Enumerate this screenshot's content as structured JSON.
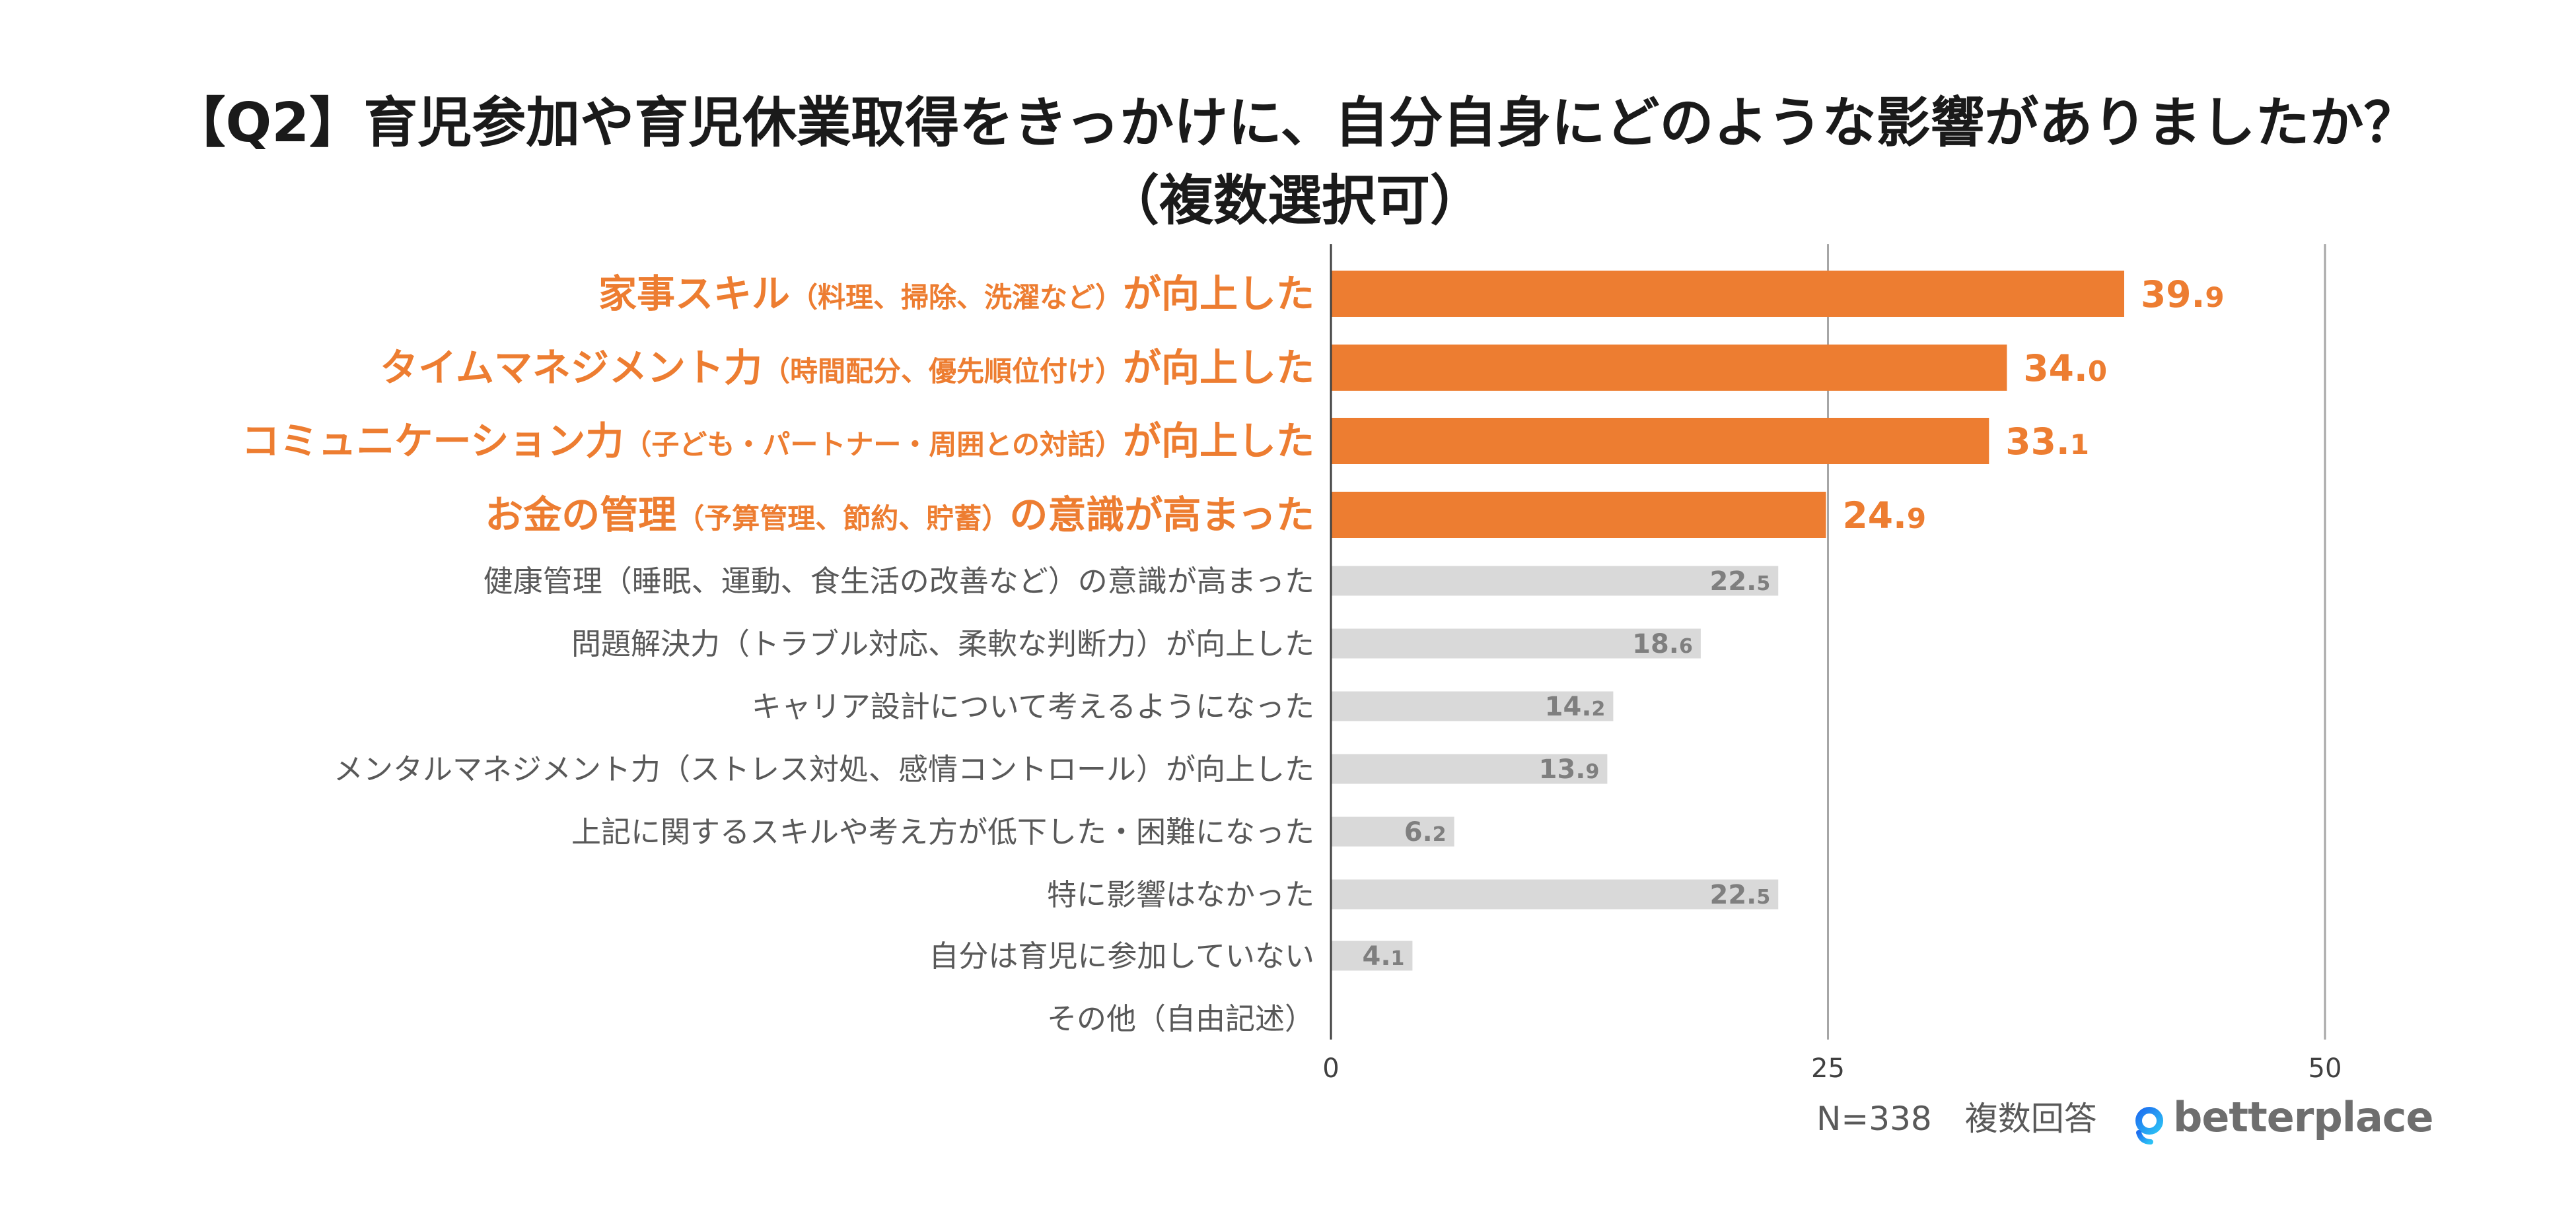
{
  "chart_data": {
    "type": "bar",
    "orientation": "horizontal",
    "title": "【Q2】育児参加や育児休業取得をきっかけに、自分自身にどのような影響がありましたか？",
    "subtitle": "（複数選択可）",
    "categories": [
      "家事スキル（料理、掃除、洗濯など）が向上した",
      "タイムマネジメント力（時間配分、優先順位付け）が向上した",
      "コミュニケーション力（子ども・パートナー・周囲との対話）が向上した",
      "お金の管理（予算管理、節約、貯蓄）の意識が高まった",
      "健康管理（睡眠、運動、食生活の改善など）の意識が高まった",
      "問題解決力（トラブル対応、柔軟な判断力）が向上した",
      "キャリア設計について考えるようになった",
      "メンタルマネジメント力（ストレス対処、感情コントロール）が向上した",
      "上記に関するスキルや考え方が低下した・困難になった",
      "特に影響はなかった",
      "自分は育児に参加していない",
      "その他（自由記述）"
    ],
    "values": [
      39.9,
      34.0,
      33.1,
      24.9,
      22.5,
      18.6,
      14.2,
      13.9,
      6.2,
      22.5,
      4.1,
      0
    ],
    "bar_colors": [
      "#ED7D31",
      "#ED7D31",
      "#ED7D31",
      "#ED7D31",
      "#D9D9D9",
      "#D9D9D9",
      "#D9D9D9",
      "#D9D9D9",
      "#D9D9D9",
      "#D9D9D9",
      "#D9D9D9",
      "#D9D9D9"
    ],
    "xlim": [
      0,
      50
    ],
    "xticks": [
      0,
      25,
      50
    ],
    "xtick_labels": [
      "0",
      "25",
      "50"
    ],
    "grid": true
  },
  "footer": {
    "note": "N=338　複数回答"
  },
  "logo": {
    "text": "betterplace",
    "icon": "betterplace-logo-icon"
  },
  "colors": {
    "highlight": "#ED7D31",
    "base": "#D9D9D9",
    "title": "#1A1A1A",
    "label": "#595959",
    "value": "#7F7F7F",
    "axis": "#404040",
    "grid": "#A6A6A6",
    "logo_icon": "#1E90FF",
    "logo_text": "#6E6E6E"
  }
}
